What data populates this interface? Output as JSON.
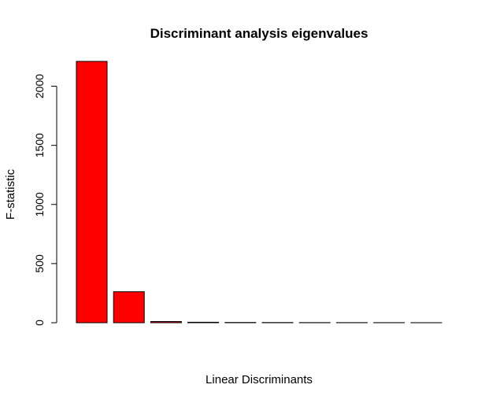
{
  "chart_data": {
    "type": "bar",
    "title": "Discriminant analysis eigenvalues",
    "xlabel": "Linear Discriminants",
    "ylabel": "F-statistic",
    "categories": [
      "",
      "",
      "",
      "",
      "",
      "",
      "",
      "",
      "",
      ""
    ],
    "values": [
      2210,
      262,
      10,
      4,
      2,
      1.5,
      1,
      0.8,
      0.6,
      0.4
    ],
    "ylim": [
      0,
      2210
    ],
    "yticks": [
      0,
      500,
      1000,
      1500,
      2000
    ],
    "ytick_labels": [
      "0",
      "500",
      "1000",
      "1500",
      "2000"
    ],
    "bar_color": "#ff0000",
    "grid": false,
    "legend": "none"
  }
}
